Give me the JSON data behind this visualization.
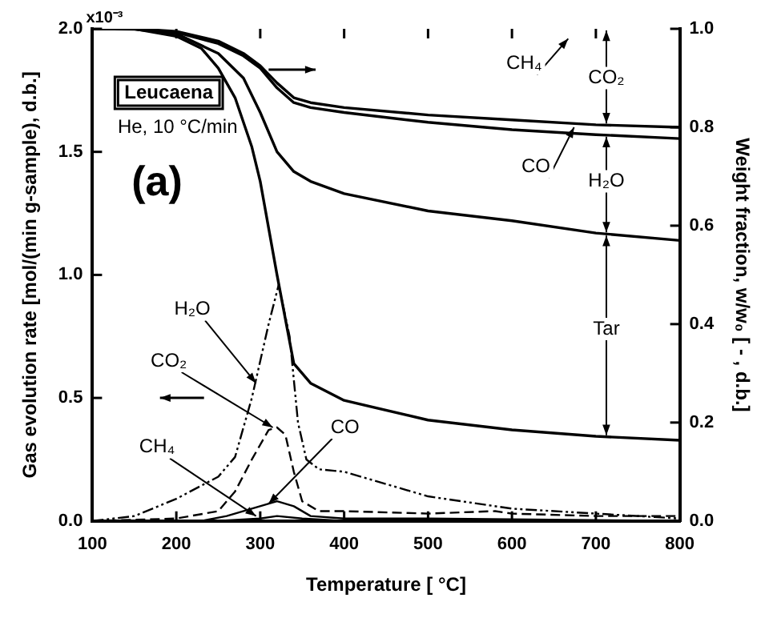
{
  "chart_data": {
    "type": "line",
    "xlabel": "Temperature [ °C]",
    "ylabel": "Gas evolution rate [mol/(min g-sample), d.b.]",
    "y2label": "Weight fraction, w/w₀ [ - , d.b.]",
    "xlim": [
      100,
      800
    ],
    "xticks": [
      100,
      200,
      300,
      400,
      500,
      600,
      700,
      800
    ],
    "ylim": [
      0,
      2
    ],
    "yticks": [
      {
        "value": 0,
        "label": "0.0"
      },
      0.5,
      {
        "value": 1,
        "label": "1.0"
      },
      1.5,
      {
        "value": 2,
        "label": "2.0"
      }
    ],
    "y2lim": [
      0,
      1
    ],
    "y2ticks": [
      {
        "value": 0,
        "label": "0.0"
      },
      0.2,
      0.4,
      0.6,
      0.8,
      {
        "value": 1,
        "label": "1.0"
      }
    ],
    "grid": false,
    "legend": false,
    "marker": "none",
    "series": [
      {
        "color": "#000000",
        "line_style": "dotted",
        "x": [
          100,
          150,
          200,
          250,
          270,
          290,
          310,
          322,
          335,
          345,
          355,
          370,
          400,
          450,
          500,
          600,
          700,
          800
        ],
        "values": [
          0,
          0.02,
          0.09,
          0.18,
          0.26,
          0.5,
          0.8,
          0.96,
          0.75,
          0.4,
          0.25,
          0.21,
          0.2,
          0.15,
          0.1,
          0.05,
          0.03,
          0.01
        ]
      },
      {
        "color": "#000000",
        "line_style": "dashed",
        "x": [
          100,
          200,
          250,
          270,
          290,
          310,
          320,
          330,
          340,
          350,
          370,
          400,
          500,
          580,
          600,
          700,
          800
        ],
        "values": [
          0,
          0.01,
          0.04,
          0.12,
          0.25,
          0.37,
          0.38,
          0.35,
          0.2,
          0.08,
          0.04,
          0.04,
          0.03,
          0.04,
          0.03,
          0.02,
          0.02
        ]
      },
      {
        "color": "#000000",
        "line_style": "solid",
        "x": [
          100,
          230,
          260,
          290,
          320,
          340,
          360,
          400,
          500,
          800
        ],
        "values": [
          0,
          0,
          0.02,
          0.05,
          0.08,
          0.06,
          0.02,
          0.01,
          0.01,
          0
        ]
      },
      {
        "color": "#000000",
        "line_style": "solid",
        "x": [
          100,
          250,
          300,
          320,
          350,
          400,
          800
        ],
        "values": [
          0,
          0,
          0.01,
          0.02,
          0.01,
          0,
          0
        ]
      },
      {
        "color": "#000000",
        "line_style": "solid",
        "axis": "y2",
        "x": [
          100,
          150,
          200,
          250,
          280,
          300,
          320,
          340,
          360,
          400,
          500,
          600,
          700,
          800
        ],
        "values": [
          1,
          1,
          0.995,
          0.975,
          0.95,
          0.925,
          0.89,
          0.86,
          0.85,
          0.84,
          0.825,
          0.815,
          0.805,
          0.8
        ]
      },
      {
        "color": "#000000",
        "line_style": "solid",
        "axis": "y2",
        "x": [
          100,
          150,
          200,
          250,
          280,
          300,
          320,
          340,
          360,
          400,
          500,
          600,
          700,
          800
        ],
        "values": [
          1,
          1,
          0.993,
          0.97,
          0.945,
          0.92,
          0.88,
          0.85,
          0.84,
          0.83,
          0.81,
          0.795,
          0.785,
          0.777
        ]
      },
      {
        "color": "#000000",
        "line_style": "solid",
        "axis": "y2",
        "x": [
          100,
          150,
          200,
          250,
          280,
          300,
          320,
          340,
          360,
          400,
          500,
          600,
          700,
          800
        ],
        "values": [
          1,
          0.999,
          0.99,
          0.95,
          0.9,
          0.83,
          0.75,
          0.71,
          0.69,
          0.665,
          0.63,
          0.61,
          0.585,
          0.57
        ]
      },
      {
        "color": "#000000",
        "line_style": "solid",
        "axis": "y2",
        "x": [
          100,
          150,
          200,
          230,
          250,
          270,
          290,
          300,
          320,
          340,
          360,
          400,
          500,
          600,
          700,
          800
        ],
        "values": [
          1,
          1,
          0.985,
          0.96,
          0.92,
          0.86,
          0.76,
          0.69,
          0.5,
          0.32,
          0.28,
          0.245,
          0.205,
          0.185,
          0.172,
          0.164
        ]
      }
    ],
    "annotations": [
      "Leucaena",
      "He, 10 °C/min",
      "(a)",
      {
        "text": "H₂O",
        "x": 295,
        "y": 0.56
      },
      {
        "text": "CO₂",
        "x": 315,
        "y": 0.38
      },
      {
        "text": "CH₄",
        "x": 295,
        "y": 0.02
      },
      {
        "text": "CO",
        "x": 310,
        "y": 0.07
      },
      "CH₄",
      "CO₂",
      {
        "text": "CO",
        "x": 674,
        "y": 1.6
      },
      "H₂O",
      "Tar",
      "x10⁻³"
    ]
  }
}
